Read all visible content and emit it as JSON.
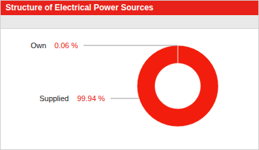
{
  "chart_data": {
    "type": "pie",
    "title": "Structure of Electrical Power Sources",
    "categories": [
      "Own",
      "Supplied"
    ],
    "values": [
      0.06,
      99.94
    ],
    "value_labels": [
      "0.06 %",
      "99.94 %"
    ],
    "colors": [
      "#d9d9d9",
      "#f21d0c"
    ],
    "data_labels": true
  }
}
